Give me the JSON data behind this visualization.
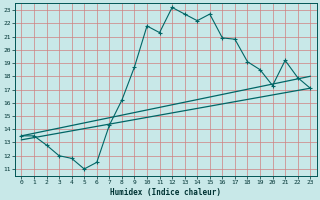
{
  "xlabel": "Humidex (Indice chaleur)",
  "ylabel": "",
  "bg_color": "#c8e8e8",
  "line_color": "#006666",
  "grid_color": "#b8d8d8",
  "xlim": [
    -0.5,
    23.5
  ],
  "ylim": [
    10.5,
    23.5
  ],
  "xticks": [
    0,
    1,
    2,
    3,
    4,
    5,
    6,
    7,
    8,
    9,
    10,
    11,
    12,
    13,
    14,
    15,
    16,
    17,
    18,
    19,
    20,
    21,
    22,
    23
  ],
  "yticks": [
    11,
    12,
    13,
    14,
    15,
    16,
    17,
    18,
    19,
    20,
    21,
    22,
    23
  ],
  "line1_x": [
    0,
    1,
    2,
    3,
    4,
    5,
    6,
    7,
    8,
    9,
    10,
    11,
    12,
    13,
    14,
    15,
    16,
    17,
    18,
    19,
    20,
    21,
    22,
    23
  ],
  "line1_y": [
    13.5,
    13.5,
    12.8,
    12.0,
    11.8,
    11.0,
    11.5,
    14.3,
    16.2,
    18.7,
    21.8,
    21.3,
    23.2,
    22.7,
    22.2,
    22.7,
    20.9,
    20.8,
    19.1,
    18.5,
    17.3,
    19.2,
    17.9,
    17.1
  ],
  "line2_x": [
    0,
    23
  ],
  "line2_y": [
    13.5,
    18.0
  ],
  "line3_x": [
    0,
    23
  ],
  "line3_y": [
    13.2,
    17.1
  ]
}
